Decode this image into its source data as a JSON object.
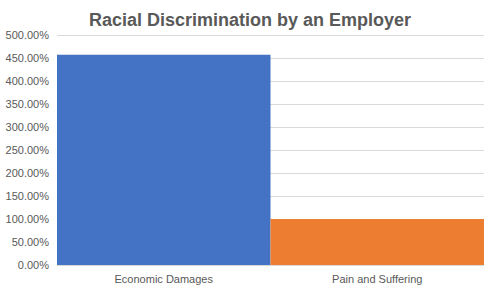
{
  "chart_data": {
    "type": "bar",
    "title": "Racial Discrimination by an Employer",
    "categories": [
      "Economic Damages",
      "Pain and Suffering"
    ],
    "values": [
      457,
      100
    ],
    "colors": [
      "#4472c4",
      "#ed7d31"
    ],
    "ylim": [
      0,
      500
    ],
    "yticks": [
      {
        "value": 0,
        "label": "0.00%"
      },
      {
        "value": 50,
        "label": "50.00%"
      },
      {
        "value": 100,
        "label": "100.00%"
      },
      {
        "value": 150,
        "label": "150.00%"
      },
      {
        "value": 200,
        "label": "200.00%"
      },
      {
        "value": 250,
        "label": "250.00%"
      },
      {
        "value": 300,
        "label": "300.00%"
      },
      {
        "value": 350,
        "label": "350.00%"
      },
      {
        "value": 400,
        "label": "400.00%"
      },
      {
        "value": 450,
        "label": "450.00%"
      },
      {
        "value": 500,
        "label": "500.00%"
      }
    ],
    "grid": true
  }
}
